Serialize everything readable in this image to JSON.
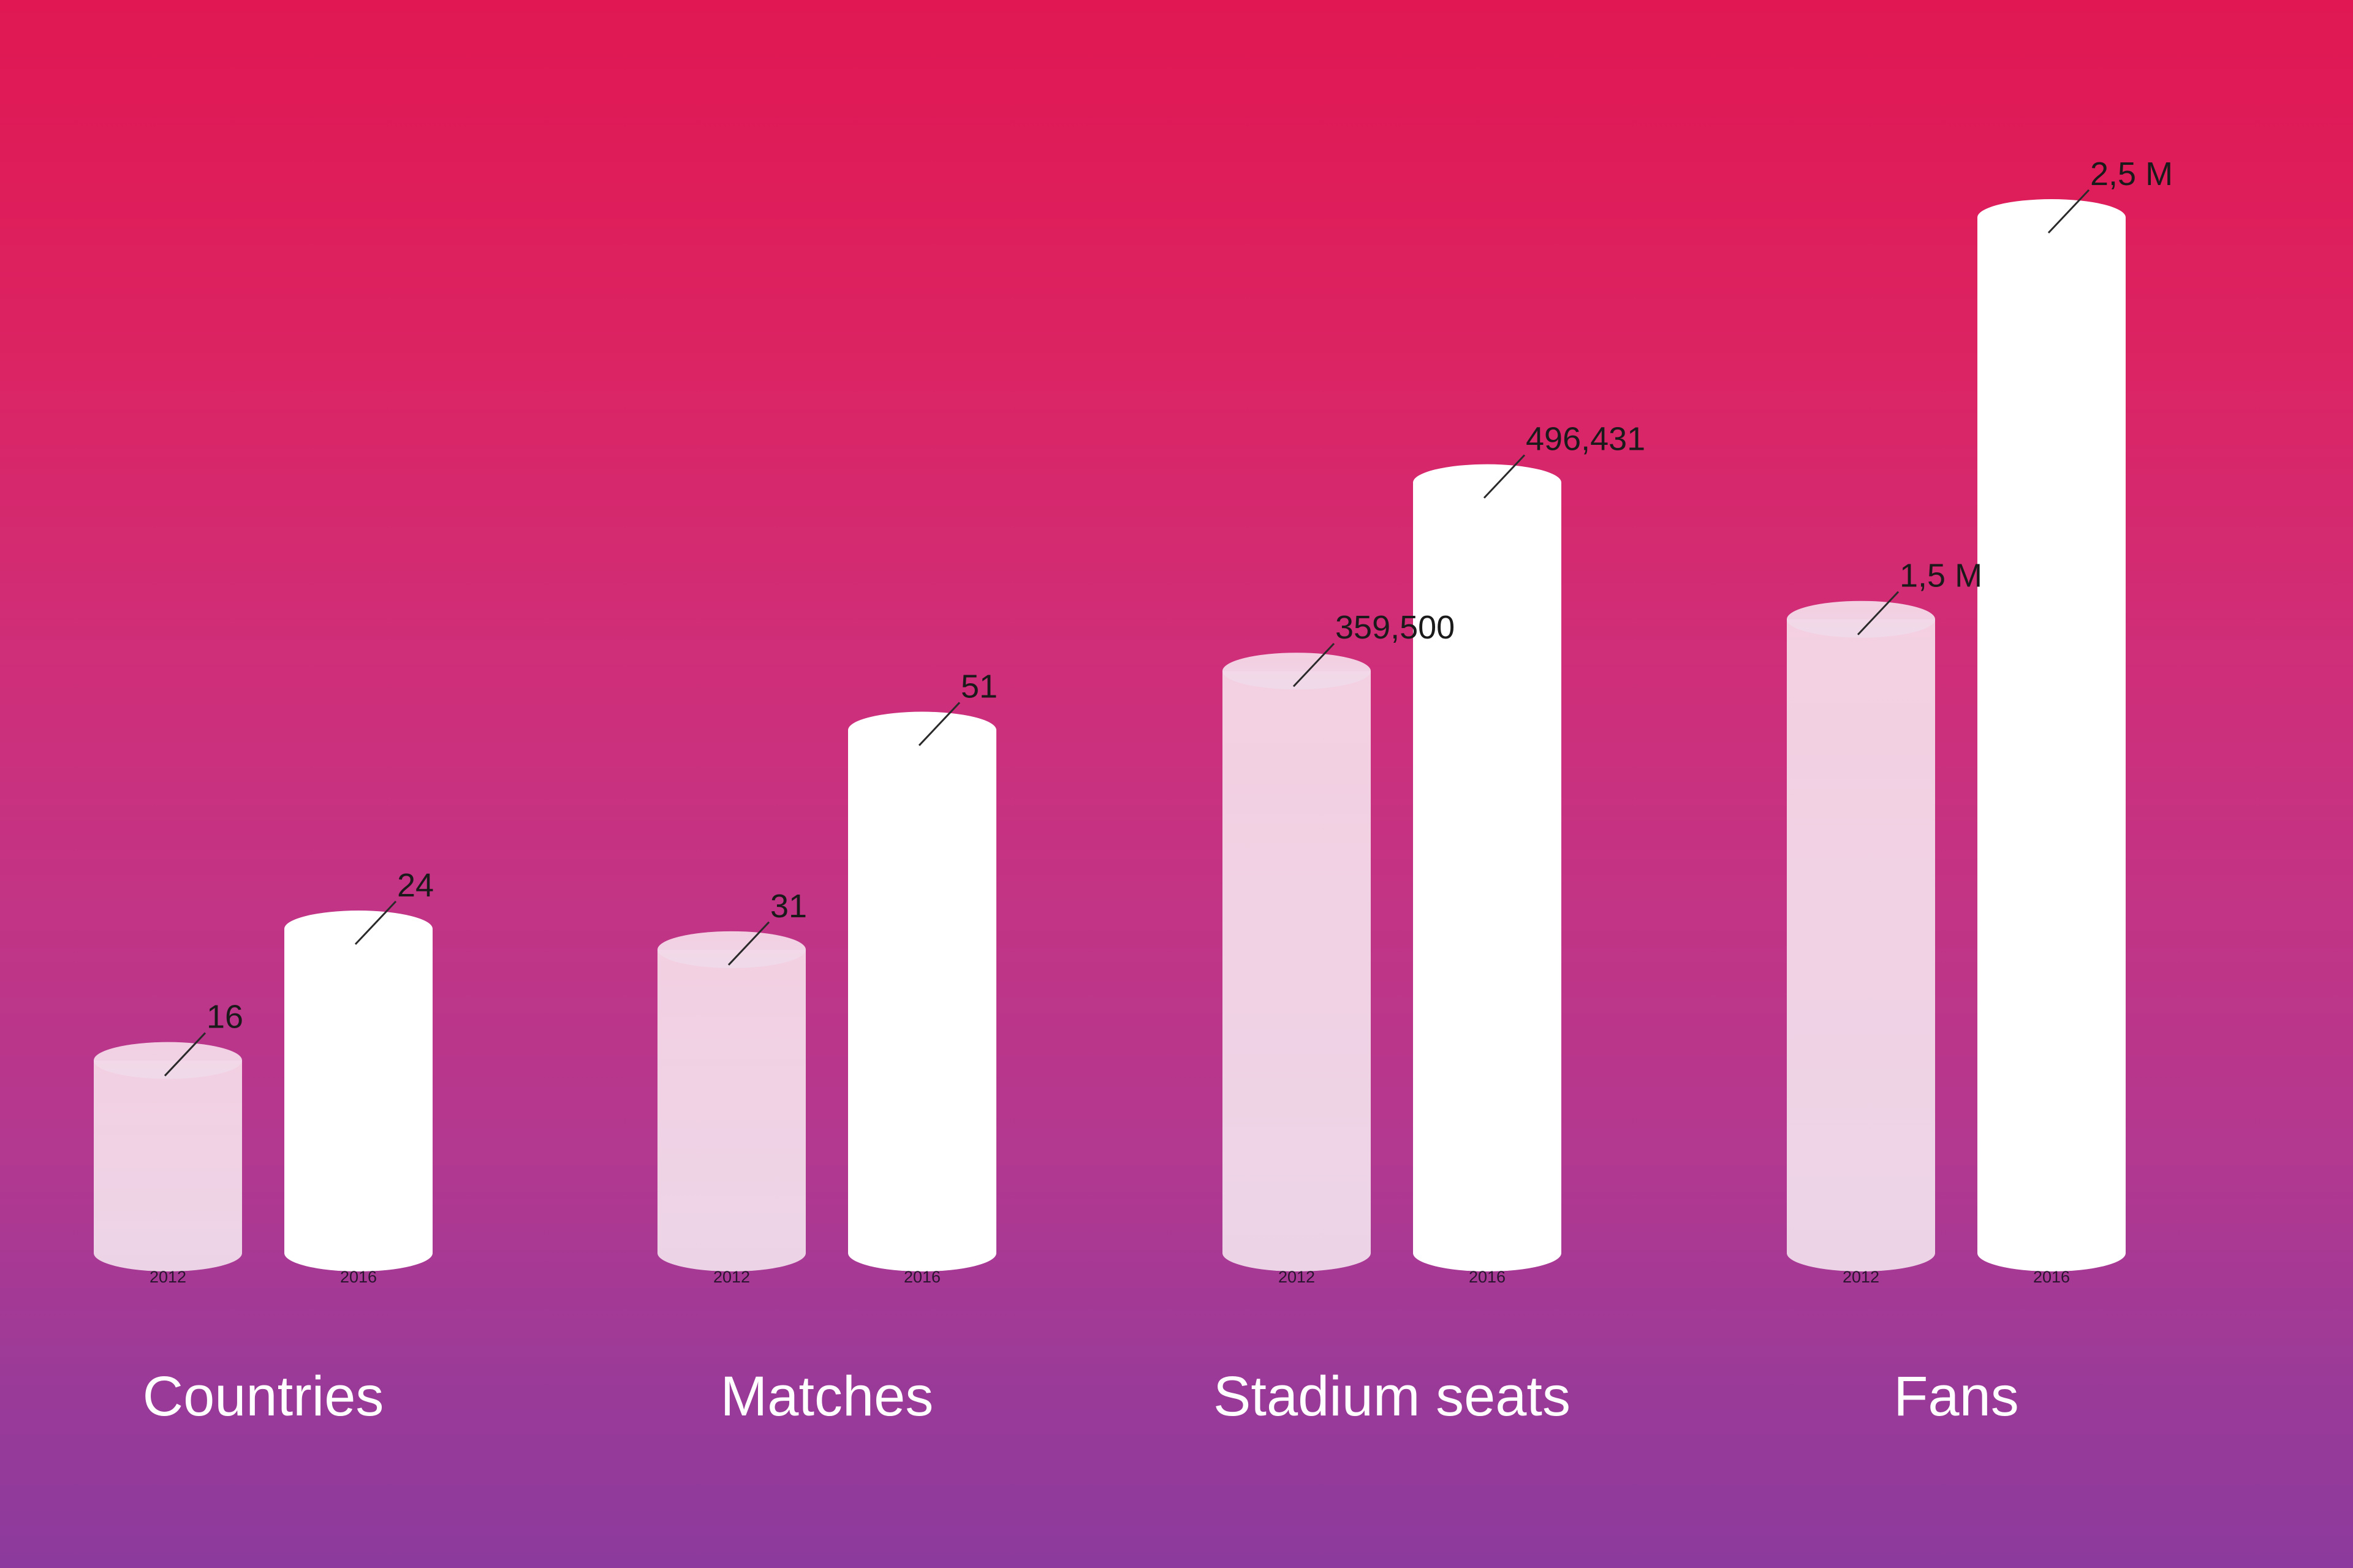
{
  "chart_data": {
    "type": "bar",
    "title": "",
    "xlabel": "",
    "ylabel": "",
    "series_names": [
      "2012",
      "2016"
    ],
    "groups": [
      {
        "category": "Countries",
        "bars": [
          {
            "year": "2012",
            "label": "16",
            "value": 16
          },
          {
            "year": "2016",
            "label": "24",
            "value": 24
          }
        ]
      },
      {
        "category": "Matches",
        "bars": [
          {
            "year": "2012",
            "label": "31",
            "value": 31
          },
          {
            "year": "2016",
            "label": "51",
            "value": 51
          }
        ]
      },
      {
        "category": "Stadium seats",
        "bars": [
          {
            "year": "2012",
            "label": "359,500",
            "value": 359500
          },
          {
            "year": "2016",
            "label": "496,431",
            "value": 496431
          }
        ]
      },
      {
        "category": "Fans",
        "bars": [
          {
            "year": "2012",
            "label": "1,5 M",
            "value": 1500000
          },
          {
            "year": "2016",
            "label": "2,5 M",
            "value": 2500000
          }
        ]
      }
    ],
    "bar_level": {
      "note": "bars are not on a common axis; fill level per bar as fraction of tallest bar",
      "levels": [
        [
          0.186,
          0.313
        ],
        [
          0.293,
          0.505
        ],
        [
          0.562,
          0.744
        ],
        [
          0.612,
          1.0
        ]
      ]
    },
    "colors": {
      "bar_2012": "#f1d0e2",
      "bar_2016": "#ffffff",
      "leader_line": "#2a2a2a",
      "value_text": "#1a1a1a",
      "category_text": "#ffffff"
    }
  }
}
